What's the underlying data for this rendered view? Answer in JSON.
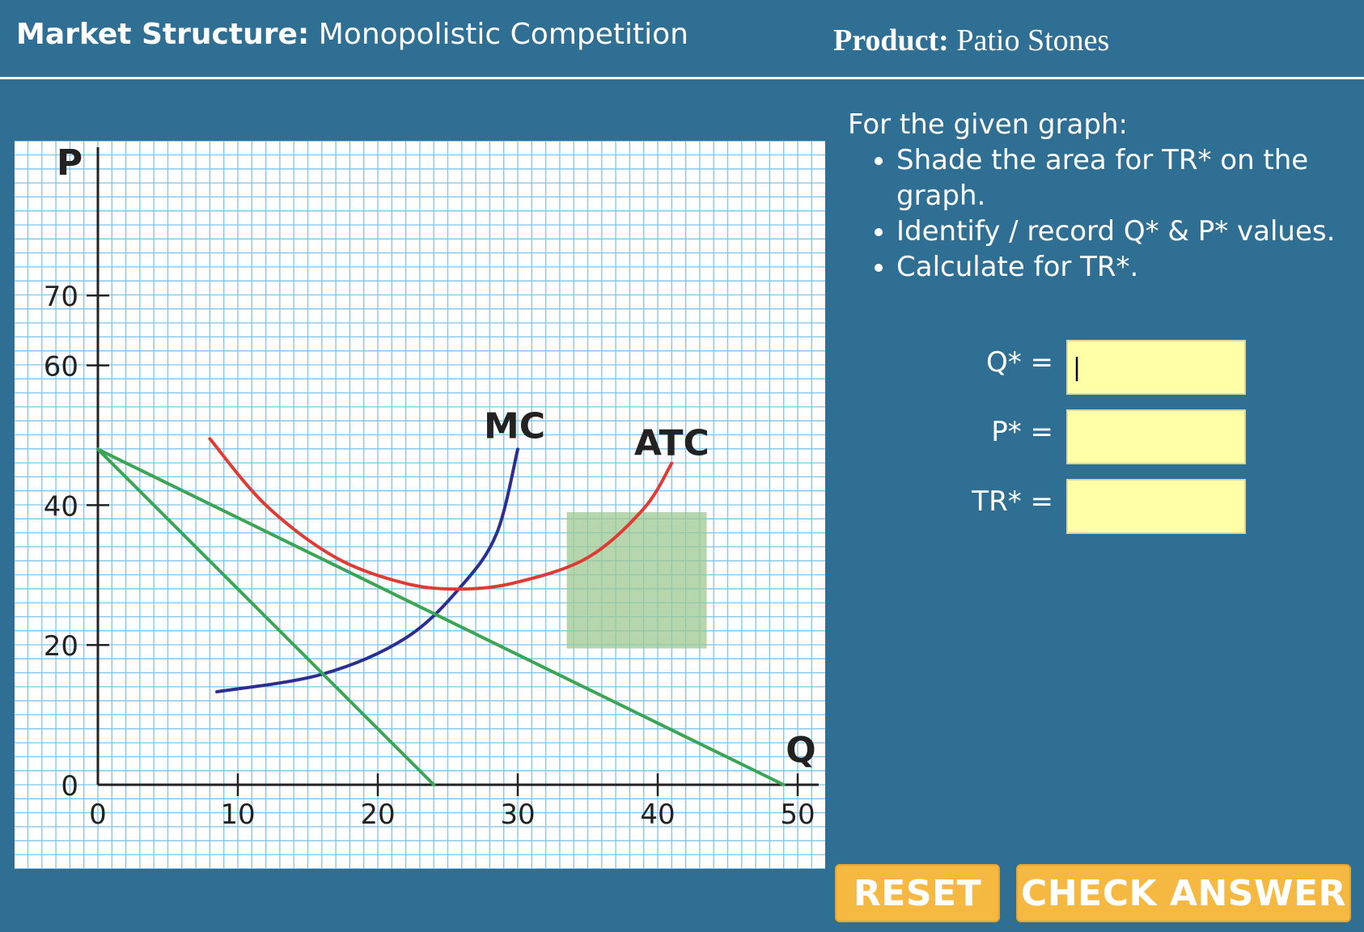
{
  "header": {
    "market_label": "Market Structure:",
    "market_value": "Monopolistic Competition",
    "product_label": "Product:",
    "product_value": "Patio Stones"
  },
  "instructions": {
    "intro": "For the given graph:",
    "bullets": [
      "Shade the area for TR* on the graph.",
      "Identify / record  Q* & P* values.",
      "Calculate for TR*."
    ]
  },
  "fields": [
    {
      "label": "Q* =",
      "value": "|"
    },
    {
      "label": "P* =",
      "value": ""
    },
    {
      "label": "TR* =",
      "value": ""
    }
  ],
  "buttons": {
    "reset": "RESET",
    "check": "CHECK ANSWER"
  },
  "colors": {
    "background": "#2f6f94",
    "grid": "#7fc3e6",
    "mc": "#2b2f8f",
    "atc": "#e03a34",
    "demand_mr": "#3aa655",
    "shade": "#9dc891",
    "field_bg": "#ffffa8",
    "button": "#f5b841"
  },
  "chart_data": {
    "type": "line",
    "xlabel": "Q",
    "ylabel": "P",
    "xlim": [
      0,
      50
    ],
    "ylim": [
      0,
      70
    ],
    "x_ticks": [
      0,
      10,
      20,
      30,
      40,
      50
    ],
    "y_ticks": [
      0,
      20,
      40,
      60,
      70
    ],
    "grid": true,
    "series": [
      {
        "name": "MC",
        "points": [
          [
            8.5,
            13.3
          ],
          [
            16,
            15.8
          ],
          [
            22,
            21
          ],
          [
            26,
            28.5
          ],
          [
            28.5,
            36
          ],
          [
            30,
            48
          ]
        ]
      },
      {
        "name": "ATC",
        "points": [
          [
            8,
            49.5
          ],
          [
            12,
            40
          ],
          [
            17,
            32.5
          ],
          [
            22,
            28.8
          ],
          [
            26,
            28
          ],
          [
            30,
            29
          ],
          [
            35,
            32.5
          ],
          [
            39,
            39.5
          ],
          [
            41,
            46
          ]
        ]
      },
      {
        "name": "",
        "points": [
          [
            0,
            48
          ],
          [
            49,
            0
          ]
        ]
      },
      {
        "name": "",
        "points": [
          [
            0,
            48
          ],
          [
            24,
            0
          ]
        ]
      }
    ],
    "shaded_region": {
      "x": [
        33.5,
        43.5
      ],
      "y": [
        19.5,
        39
      ]
    }
  }
}
